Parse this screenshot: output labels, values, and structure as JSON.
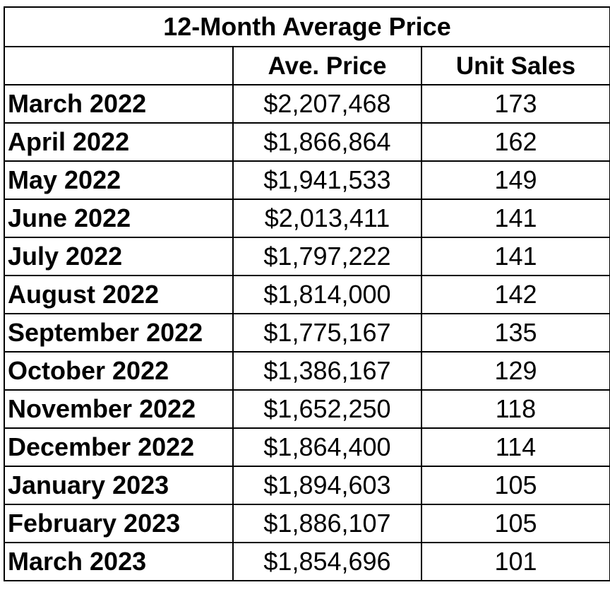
{
  "chart_data": {
    "type": "table",
    "title": "12-Month Average Price",
    "columns": [
      "",
      "Ave. Price",
      "Unit Sales"
    ],
    "rows": [
      {
        "month": "March 2022",
        "ave_price": "$2,207,468",
        "unit_sales": "173"
      },
      {
        "month": "April 2022",
        "ave_price": "$1,866,864",
        "unit_sales": "162"
      },
      {
        "month": "May 2022",
        "ave_price": "$1,941,533",
        "unit_sales": "149"
      },
      {
        "month": "June 2022",
        "ave_price": "$2,013,411",
        "unit_sales": "141"
      },
      {
        "month": "July 2022",
        "ave_price": "$1,797,222",
        "unit_sales": "141"
      },
      {
        "month": "August 2022",
        "ave_price": "$1,814,000",
        "unit_sales": "142"
      },
      {
        "month": "September 2022",
        "ave_price": "$1,775,167",
        "unit_sales": "135"
      },
      {
        "month": "October 2022",
        "ave_price": "$1,386,167",
        "unit_sales": "129"
      },
      {
        "month": "November 2022",
        "ave_price": "$1,652,250",
        "unit_sales": "118"
      },
      {
        "month": "December 2022",
        "ave_price": "$1,864,400",
        "unit_sales": "114"
      },
      {
        "month": "January 2023",
        "ave_price": "$1,894,603",
        "unit_sales": "105"
      },
      {
        "month": "February 2023",
        "ave_price": "$1,886,107",
        "unit_sales": "105"
      },
      {
        "month": "March 2023",
        "ave_price": "$1,854,696",
        "unit_sales": "101"
      }
    ]
  }
}
